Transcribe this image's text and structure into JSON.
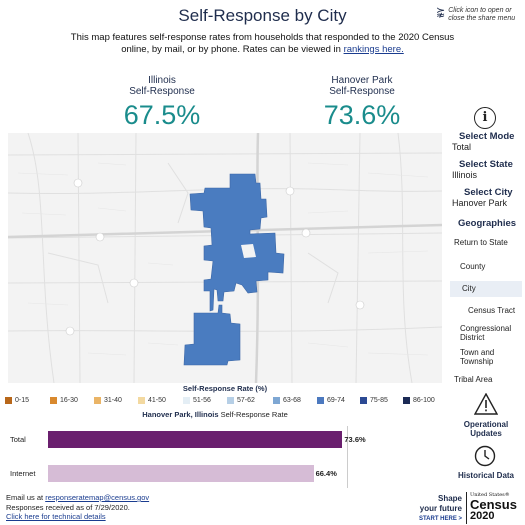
{
  "header": {
    "title": "Self-Response by City",
    "share_hint": "Click icon to open or close the share menu",
    "intro_text": "This map features self-response rates from households that responded to the 2020 Census online, by mail, or by phone. Rates can be viewed in",
    "intro_link": "rankings here."
  },
  "stats": {
    "left": {
      "name": "Illinois",
      "sub": "Self-Response",
      "value": "67.5%"
    },
    "right": {
      "name": "Hanover Park",
      "sub": "Self-Response",
      "value": "73.6%"
    }
  },
  "sidebar": {
    "select_mode_label": "Select Mode",
    "select_mode_value": "Total",
    "select_state_label": "Select State",
    "select_state_value": "Illinois",
    "select_city_label": "Select City",
    "select_city_value": "Hanover Park",
    "geographies_label": "Geographies",
    "geographies": [
      "Return to State",
      "County",
      "City",
      "Census Tract",
      "Congressional District",
      "Town and Township",
      "Tribal Area"
    ],
    "active_geography": "City",
    "operational_updates": "Operational Updates",
    "historical_data": "Historical Data"
  },
  "legend": {
    "title": "Self-Response Rate (%)",
    "items": [
      {
        "label": "0-15",
        "color": "#b8671a"
      },
      {
        "label": "16-30",
        "color": "#d9892e"
      },
      {
        "label": "31-40",
        "color": "#eab466"
      },
      {
        "label": "41-50",
        "color": "#f3d9a0"
      },
      {
        "label": "51-56",
        "color": "#e4eef5"
      },
      {
        "label": "57-62",
        "color": "#b6cfe6"
      },
      {
        "label": "63-68",
        "color": "#7ea7d3"
      },
      {
        "label": "69-74",
        "color": "#4c79bf"
      },
      {
        "label": "75-85",
        "color": "#2c4a94"
      },
      {
        "label": "86-100",
        "color": "#1b2a55"
      }
    ]
  },
  "chart_data": {
    "type": "bar",
    "title": "Hanover Park, Illinois Self-Response Rate",
    "categories": [
      "Total",
      "Internet"
    ],
    "values": [
      73.6,
      66.4
    ],
    "value_labels": [
      "73.6%",
      "66.4%"
    ],
    "colors": [
      "#6a1f6e",
      "#d6bcd6"
    ],
    "xlim": [
      0,
      100
    ]
  },
  "bar_title": {
    "place": "Hanover Park, Illinois",
    "rest": "Self-Response Rate"
  },
  "footer": {
    "email_prefix": "Email us at",
    "email": "responseratemap@census.gov",
    "received": "Responses received as of 7/29/2020.",
    "tech_link": "Click here for technical details"
  },
  "brand": {
    "line1": "Shape",
    "line2": "your future",
    "start": "START HERE >",
    "census_top": "United States®",
    "census_word": "Census",
    "census_year": "2020"
  }
}
